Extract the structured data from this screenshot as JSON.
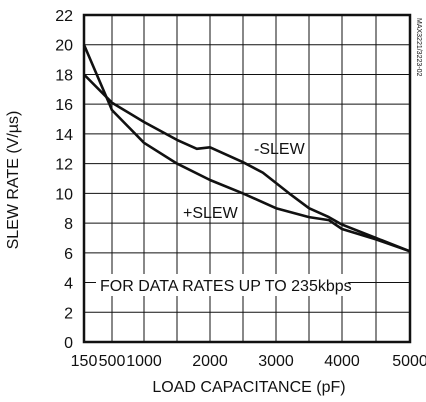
{
  "chart_data": {
    "type": "line",
    "xlabel": "LOAD CAPACITANCE (pF)",
    "ylabel": "SLEW RATE (V/µs)",
    "xlim": [
      150,
      5000
    ],
    "ylim": [
      0,
      22
    ],
    "x_ticks": [
      150,
      500,
      1000,
      2000,
      3000,
      4000,
      5000
    ],
    "x_tick_labels": [
      "150",
      "500",
      "1000",
      "2000",
      "3000",
      "4000",
      "5000"
    ],
    "y_ticks": [
      0,
      2,
      4,
      6,
      8,
      10,
      12,
      14,
      16,
      18,
      20,
      22
    ],
    "y_tick_labels": [
      "0",
      "2",
      "4",
      "6",
      "8",
      "10",
      "12",
      "14",
      "16",
      "18",
      "20",
      "22"
    ],
    "grid": true,
    "series": [
      {
        "name": "-SLEW",
        "x": [
          150,
          500,
          1000,
          1500,
          1800,
          2000,
          2500,
          2800,
          3200,
          3500,
          3800,
          4000,
          4500,
          5000
        ],
        "y": [
          18,
          16.1,
          14.8,
          13.6,
          13,
          13.1,
          12.1,
          11.4,
          10,
          9,
          8.4,
          7.9,
          7.0,
          6.1
        ]
      },
      {
        "name": "+SLEW",
        "x": [
          150,
          500,
          1000,
          1500,
          2000,
          2500,
          3000,
          3500,
          3800,
          4000,
          4500,
          5000
        ],
        "y": [
          20,
          15.6,
          13.4,
          12.0,
          10.9,
          10,
          9.0,
          8.4,
          8.2,
          7.6,
          6.9,
          6.1
        ]
      }
    ],
    "annotations": {
      "minus_slew": "-SLEW",
      "plus_slew": "+SLEW",
      "note": "FOR DATA RATES UP TO 235kbps",
      "side_code": "MAX3221/3223-02"
    }
  }
}
